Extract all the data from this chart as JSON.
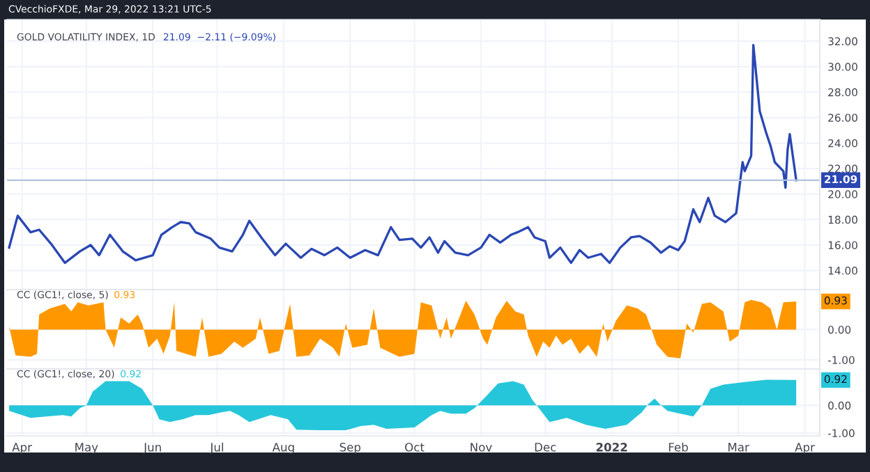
{
  "chart_data": [
    {
      "type": "line",
      "title": "GOLD VOLATILITY INDEX, 1D",
      "subtitle": "21.09  −2.11 (−9.09%)",
      "annotations": [
        "CVecchioFXDE, Mar 29, 2022 13:21 UTC-5"
      ],
      "grid": true,
      "tick_labels": "y",
      "xlim": [
        "2021-03-25",
        "2022-04-08"
      ],
      "ylim": [
        12.5,
        33.7
      ],
      "yticks": [
        {
          "value": 14,
          "label": "14.00"
        },
        {
          "value": 16,
          "label": "16.00"
        },
        {
          "value": 18,
          "label": "18.00"
        },
        {
          "value": 20,
          "label": "20.00"
        },
        {
          "value": 22,
          "label": "22.00"
        },
        {
          "value": 24,
          "label": "24.00"
        },
        {
          "value": 26,
          "label": "26.00"
        },
        {
          "value": 28,
          "label": "28.00"
        },
        {
          "value": 30,
          "label": "30.00"
        },
        {
          "value": 32,
          "label": "32.00"
        }
      ],
      "ref_lines": [
        {
          "axis": "y",
          "value": 21.09,
          "label": "21.09",
          "color": "#b2c3dc"
        }
      ],
      "series": [
        {
          "color": "#2a47b3",
          "x": [
            "2021-03-26",
            "2021-03-30",
            "2021-04-05",
            "2021-04-09",
            "2021-04-15",
            "2021-04-21",
            "2021-04-28",
            "2021-05-03",
            "2021-05-07",
            "2021-05-12",
            "2021-05-18",
            "2021-05-24",
            "2021-06-01",
            "2021-06-05",
            "2021-06-10",
            "2021-06-14",
            "2021-06-18",
            "2021-06-21",
            "2021-06-28",
            "2021-07-02",
            "2021-07-08",
            "2021-07-13",
            "2021-07-16",
            "2021-07-22",
            "2021-07-28",
            "2021-08-02",
            "2021-08-09",
            "2021-08-14",
            "2021-08-20",
            "2021-08-26",
            "2021-09-01",
            "2021-09-08",
            "2021-09-14",
            "2021-09-20",
            "2021-09-24",
            "2021-09-30",
            "2021-10-04",
            "2021-10-08",
            "2021-10-12",
            "2021-10-15",
            "2021-10-20",
            "2021-10-26",
            "2021-11-01",
            "2021-11-05",
            "2021-11-10",
            "2021-11-15",
            "2021-11-18",
            "2021-11-23",
            "2021-11-26",
            "2021-12-01",
            "2021-12-03",
            "2021-12-08",
            "2021-12-13",
            "2021-12-17",
            "2021-12-21",
            "2021-12-27",
            "2021-12-31",
            "2022-01-05",
            "2022-01-10",
            "2022-01-14",
            "2022-01-19",
            "2022-01-24",
            "2022-01-28",
            "2022-02-01",
            "2022-02-04",
            "2022-02-08",
            "2022-02-11",
            "2022-02-15",
            "2022-02-18",
            "2022-02-23",
            "2022-02-28",
            "2022-03-03",
            "2022-03-04",
            "2022-03-07",
            "2022-03-08",
            "2022-03-11",
            "2022-03-14",
            "2022-03-16",
            "2022-03-18",
            "2022-03-22",
            "2022-03-23",
            "2022-03-24",
            "2022-03-25",
            "2022-03-28"
          ],
          "values": [
            15.8,
            18.3,
            17.0,
            17.2,
            16.0,
            14.6,
            15.5,
            16.0,
            15.2,
            16.8,
            15.5,
            14.8,
            15.2,
            16.8,
            17.4,
            17.8,
            17.7,
            17.0,
            16.5,
            15.8,
            15.5,
            16.8,
            17.9,
            16.5,
            15.2,
            16.1,
            15.0,
            15.7,
            15.2,
            15.8,
            15.0,
            15.6,
            15.2,
            17.4,
            16.4,
            16.5,
            15.8,
            16.6,
            15.4,
            16.3,
            15.4,
            15.2,
            15.8,
            16.8,
            16.2,
            16.8,
            17.0,
            17.4,
            16.6,
            16.3,
            15.0,
            15.8,
            14.6,
            15.6,
            15.0,
            15.3,
            14.6,
            15.8,
            16.6,
            16.7,
            16.2,
            15.4,
            15.9,
            15.6,
            16.3,
            18.8,
            17.8,
            19.7,
            18.3,
            17.8,
            18.5,
            22.5,
            21.8,
            23.0,
            31.7,
            26.5,
            24.8,
            23.8,
            22.5,
            21.8,
            20.5,
            23.5,
            24.7,
            21.09
          ]
        }
      ]
    },
    {
      "type": "area",
      "title": "CC (GC1!, close, 5)",
      "annotations": [
        {
          "text": "0.93",
          "x": "2022-03-28",
          "y": 0.93
        }
      ],
      "grid": true,
      "tick_labels": "y",
      "xlim": [
        "2021-03-25",
        "2022-04-08"
      ],
      "ylim": [
        -1.3,
        1.32
      ],
      "yticks": [
        {
          "value": 0,
          "label": "0.00"
        },
        {
          "value": -1,
          "label": "-1.00"
        }
      ],
      "series": [
        {
          "color": "#ff9800",
          "x": [
            "2021-03-26",
            "2021-03-29",
            "2021-04-05",
            "2021-04-08",
            "2021-04-09",
            "2021-04-14",
            "2021-04-21",
            "2021-04-24",
            "2021-04-27",
            "2021-05-02",
            "2021-05-09",
            "2021-05-10",
            "2021-05-14",
            "2021-05-17",
            "2021-05-21",
            "2021-05-25",
            "2021-05-27",
            "2021-05-30",
            "2021-06-03",
            "2021-06-06",
            "2021-06-09",
            "2021-06-11",
            "2021-06-12",
            "2021-06-21",
            "2021-06-24",
            "2021-06-27",
            "2021-07-03",
            "2021-07-09",
            "2021-07-13",
            "2021-07-19",
            "2021-07-21",
            "2021-07-25",
            "2021-07-30",
            "2021-08-04",
            "2021-08-07",
            "2021-08-13",
            "2021-08-18",
            "2021-08-24",
            "2021-08-27",
            "2021-08-30",
            "2021-09-02",
            "2021-09-09",
            "2021-09-12",
            "2021-09-15",
            "2021-09-24",
            "2021-10-01",
            "2021-10-04",
            "2021-10-09",
            "2021-10-13",
            "2021-10-16",
            "2021-10-18",
            "2021-10-25",
            "2021-10-29",
            "2021-11-02",
            "2021-11-04",
            "2021-11-08",
            "2021-11-13",
            "2021-11-17",
            "2021-11-21",
            "2021-11-23",
            "2021-11-27",
            "2021-11-30",
            "2021-12-03",
            "2021-12-06",
            "2021-12-09",
            "2021-12-13",
            "2021-12-17",
            "2021-12-21",
            "2021-12-25",
            "2021-12-28",
            "2021-12-30",
            "2022-01-03",
            "2022-01-08",
            "2022-01-13",
            "2022-01-17",
            "2022-01-22",
            "2022-01-27",
            "2022-02-02",
            "2022-02-05",
            "2022-02-08",
            "2022-02-12",
            "2022-02-16",
            "2022-02-22",
            "2022-02-25",
            "2022-03-01",
            "2022-03-04",
            "2022-03-07",
            "2022-03-12",
            "2022-03-16",
            "2022-03-19",
            "2022-03-22",
            "2022-03-28"
          ],
          "values": [
            0.1,
            -0.85,
            -0.9,
            -0.8,
            0.5,
            0.7,
            0.85,
            0.6,
            0.9,
            0.8,
            0.9,
            0.0,
            -0.6,
            0.4,
            0.2,
            0.5,
            0.2,
            -0.6,
            -0.3,
            -0.8,
            -0.2,
            0.9,
            -0.7,
            -0.9,
            0.4,
            -0.9,
            -0.8,
            -0.4,
            -0.6,
            -0.3,
            0.4,
            -0.8,
            -0.7,
            0.85,
            -0.9,
            -0.85,
            -0.3,
            -0.6,
            -0.9,
            0.2,
            -0.6,
            -0.5,
            0.7,
            -0.6,
            -0.9,
            -0.8,
            0.9,
            0.8,
            -0.3,
            0.4,
            -0.3,
            0.95,
            0.5,
            -0.3,
            -0.5,
            0.4,
            0.95,
            0.6,
            0.5,
            -0.2,
            -0.9,
            -0.4,
            -0.6,
            -0.2,
            -0.5,
            -0.3,
            -0.8,
            -0.5,
            -0.9,
            0.2,
            -0.4,
            0.3,
            0.8,
            0.7,
            0.5,
            -0.5,
            -0.9,
            -0.95,
            0.2,
            -0.1,
            0.85,
            0.9,
            0.6,
            -0.4,
            -0.2,
            0.9,
            0.98,
            0.9,
            0.7,
            0.0,
            0.9,
            0.93
          ]
        }
      ]
    },
    {
      "type": "area",
      "title": "CC (GC1!, close, 20)",
      "annotations": [
        {
          "text": "0.92",
          "x": "2022-03-28",
          "y": 0.92
        }
      ],
      "grid": true,
      "xlim": [
        "2021-03-25",
        "2022-04-08"
      ],
      "ylim": [
        -1.1,
        1.32
      ],
      "xticks": [
        {
          "value": "2021-04-01",
          "label": "Apr"
        },
        {
          "value": "2021-05-01",
          "label": "May"
        },
        {
          "value": "2021-06-01",
          "label": "Jun"
        },
        {
          "value": "2021-07-01",
          "label": "Jul"
        },
        {
          "value": "2021-08-01",
          "label": "Aug"
        },
        {
          "value": "2021-09-01",
          "label": "Sep"
        },
        {
          "value": "2021-10-01",
          "label": "Oct"
        },
        {
          "value": "2021-11-01",
          "label": "Nov"
        },
        {
          "value": "2021-12-01",
          "label": "Dec"
        },
        {
          "value": "2022-01-01",
          "label": "2022"
        },
        {
          "value": "2022-02-01",
          "label": "Feb"
        },
        {
          "value": "2022-03-01",
          "label": "Mar"
        },
        {
          "value": "2022-04-01",
          "label": "Apr"
        }
      ],
      "yticks": [
        {
          "value": 0,
          "label": "0.00"
        },
        {
          "value": -1,
          "label": "-1.00"
        }
      ],
      "series": [
        {
          "color": "#26c6da",
          "x": [
            "2021-03-26",
            "2021-04-05",
            "2021-04-20",
            "2021-04-24",
            "2021-04-28",
            "2021-05-01",
            "2021-05-04",
            "2021-05-10",
            "2021-05-21",
            "2021-05-27",
            "2021-06-01",
            "2021-06-04",
            "2021-06-09",
            "2021-06-15",
            "2021-06-21",
            "2021-06-27",
            "2021-07-03",
            "2021-07-07",
            "2021-07-11",
            "2021-07-16",
            "2021-07-26",
            "2021-08-03",
            "2021-08-07",
            "2021-08-18",
            "2021-08-30",
            "2021-09-06",
            "2021-09-12",
            "2021-09-18",
            "2021-10-01",
            "2021-10-09",
            "2021-10-13",
            "2021-10-18",
            "2021-10-25",
            "2021-10-29",
            "2021-11-03",
            "2021-11-09",
            "2021-11-16",
            "2021-11-21",
            "2021-11-25",
            "2021-11-28",
            "2021-12-03",
            "2021-12-11",
            "2021-12-20",
            "2021-12-29",
            "2022-01-08",
            "2022-01-15",
            "2022-01-18",
            "2022-01-21",
            "2022-01-24",
            "2022-01-27",
            "2022-02-05",
            "2022-02-08",
            "2022-02-12",
            "2022-02-16",
            "2022-02-22",
            "2022-03-04",
            "2022-03-14",
            "2022-03-28"
          ],
          "values": [
            -0.2,
            -0.45,
            -0.35,
            -0.4,
            -0.1,
            0.0,
            0.5,
            0.88,
            0.88,
            0.6,
            0.0,
            -0.5,
            -0.6,
            -0.5,
            -0.35,
            -0.35,
            -0.25,
            -0.2,
            -0.35,
            -0.6,
            -0.35,
            -0.5,
            -0.88,
            -0.9,
            -0.9,
            -0.75,
            -0.7,
            -0.85,
            -0.8,
            -0.35,
            -0.2,
            -0.3,
            -0.3,
            -0.1,
            0.3,
            0.8,
            0.88,
            0.75,
            0.2,
            -0.1,
            -0.6,
            -0.45,
            -0.7,
            -0.85,
            -0.7,
            -0.25,
            0.05,
            0.25,
            0.0,
            -0.2,
            -0.35,
            -0.4,
            0.0,
            0.6,
            0.75,
            0.85,
            0.93,
            0.92
          ]
        }
      ]
    }
  ]
}
